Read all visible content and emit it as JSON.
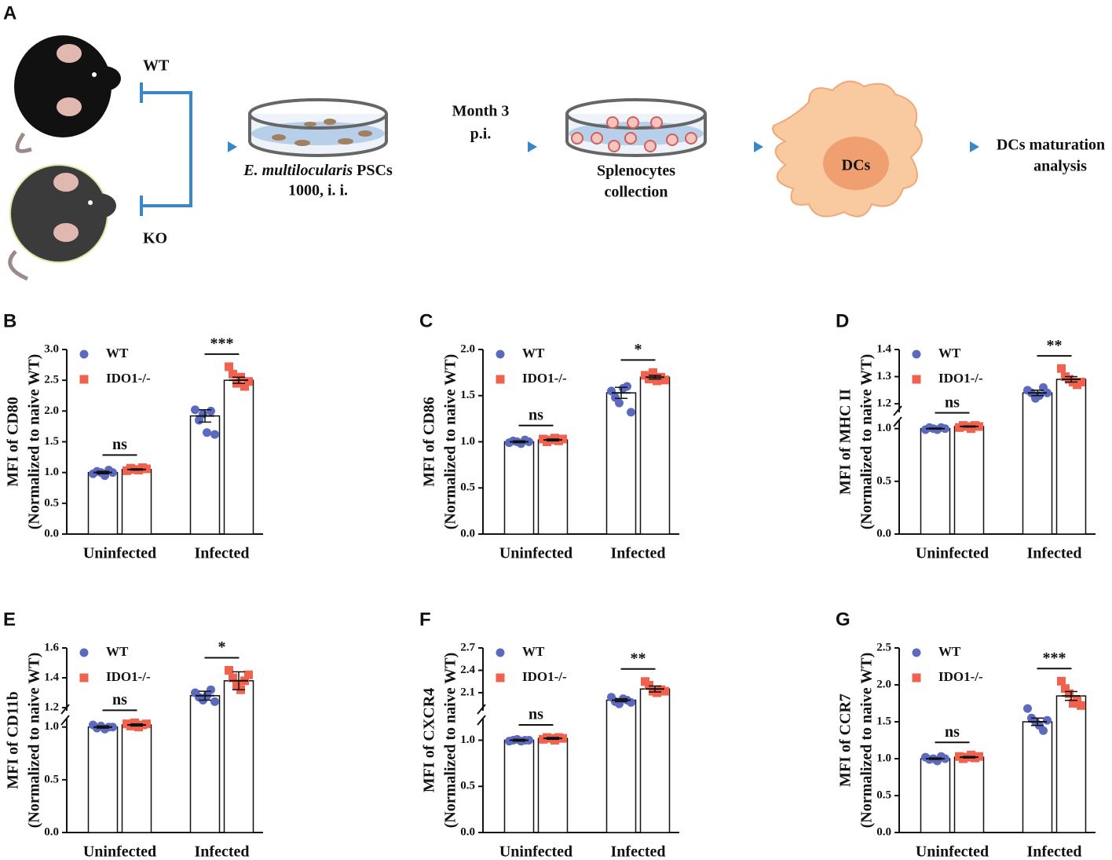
{
  "schematic": {
    "label": "A",
    "wt": "WT",
    "ko": "KO",
    "species": "E. multilocularis",
    "pscs": " PSCs",
    "dose": "1000, i. i.",
    "time": [
      "Month 3",
      "p.i."
    ],
    "collection": [
      "Splenocytes",
      "collection"
    ],
    "cell": "DCs",
    "analysis": [
      "DCs maturation",
      "analysis"
    ]
  },
  "chart_data": [
    {
      "type": "bar",
      "label": "B",
      "ylabel": [
        "MFI of CD80",
        "(Normalized to naive WT)"
      ],
      "categories": [
        "Uninfected",
        "Infected"
      ],
      "significance": [
        "ns",
        "***"
      ],
      "ylim": [
        0,
        3
      ],
      "yticks": [
        {
          "value": 0,
          "label": "0.0"
        },
        0.5,
        {
          "value": 1,
          "label": "1.0"
        },
        1.5,
        {
          "value": 2,
          "label": "2.0"
        },
        2.5,
        {
          "value": 3,
          "label": "3.0"
        }
      ],
      "series": [
        {
          "name": "WT",
          "color": "#5b6abf",
          "marker": "circle",
          "values": [
            1.0,
            1.92
          ],
          "errors": [
            0.02,
            0.1
          ],
          "points": [
            [
              0.98,
              1.02,
              1.0,
              0.95,
              1.04,
              1.0
            ],
            [
              2.02,
              1.85,
              1.95,
              1.65,
              2.0,
              1.62
            ]
          ]
        },
        {
          "name": "IDO1-/-",
          "color": "#f0624d",
          "marker": "square",
          "values": [
            1.05,
            2.5
          ],
          "errors": [
            0.01,
            0.05
          ],
          "points": [
            [
              1.03,
              1.07,
              1.05,
              1.04,
              1.08,
              1.06
            ],
            [
              2.72,
              2.6,
              2.45,
              2.55,
              2.4,
              2.48
            ]
          ]
        }
      ]
    },
    {
      "type": "bar",
      "label": "C",
      "ylabel": [
        "MFI of CD86",
        "(Normalized to naive WT)"
      ],
      "categories": [
        "Uninfected",
        "Infected"
      ],
      "significance": [
        "ns",
        "*"
      ],
      "ylim": [
        0,
        2
      ],
      "yticks": [
        {
          "value": 0,
          "label": "0.0"
        },
        0.5,
        {
          "value": 1,
          "label": "1.0"
        },
        1.5,
        {
          "value": 2,
          "label": "2.0"
        }
      ],
      "series": [
        {
          "name": "WT",
          "color": "#5b6abf",
          "marker": "circle",
          "values": [
            1.0,
            1.53
          ],
          "errors": [
            0.01,
            0.06
          ],
          "points": [
            [
              0.99,
              1.01,
              1.0,
              0.98,
              1.02,
              1.0
            ],
            [
              1.55,
              1.48,
              1.42,
              1.58,
              1.6,
              1.32
            ]
          ]
        },
        {
          "name": "IDO1-/-",
          "color": "#f0624d",
          "marker": "square",
          "values": [
            1.02,
            1.7
          ],
          "errors": [
            0.01,
            0.02
          ],
          "points": [
            [
              1.03,
              1.0,
              1.02,
              1.04,
              1.01,
              1.03
            ],
            [
              1.72,
              1.68,
              1.75,
              1.66,
              1.7,
              1.67
            ]
          ]
        }
      ]
    },
    {
      "type": "bar",
      "label": "D",
      "ylabel": [
        "MFI of MHC II",
        "(Normalized to naive WT)"
      ],
      "categories": [
        "Uninfected",
        "Infected"
      ],
      "significance": [
        "ns",
        "**"
      ],
      "ylim": [
        0,
        1.4
      ],
      "axis_break": [
        1.05,
        1.18
      ],
      "yticks": [
        {
          "value": 0,
          "label": "0.0"
        },
        0.5,
        {
          "value": 1,
          "label": "1.0"
        },
        1.2,
        1.3,
        1.4
      ],
      "series": [
        {
          "name": "WT",
          "color": "#5b6abf",
          "marker": "circle",
          "values": [
            1.0,
            1.24
          ],
          "errors": [
            0.005,
            0.01
          ],
          "points": [
            [
              0.99,
              1.01,
              1.0,
              0.99,
              1.01,
              1.0
            ],
            [
              1.25,
              1.24,
              1.22,
              1.23,
              1.26,
              1.24
            ]
          ]
        },
        {
          "name": "IDO1-/-",
          "color": "#f0624d",
          "marker": "square",
          "values": [
            1.02,
            1.29
          ],
          "errors": [
            0.005,
            0.01
          ],
          "points": [
            [
              1.01,
              1.03,
              1.02,
              1.0,
              1.03,
              1.02
            ],
            [
              1.33,
              1.3,
              1.29,
              1.28,
              1.27,
              1.28
            ]
          ]
        }
      ]
    },
    {
      "type": "bar",
      "label": "E",
      "ylabel": [
        "MFI of CD11b",
        "(Normalized to naive WT)"
      ],
      "categories": [
        "Uninfected",
        "Infected"
      ],
      "significance": [
        "ns",
        "*"
      ],
      "ylim": [
        0,
        1.6
      ],
      "axis_break": [
        1.05,
        1.2
      ],
      "yticks": [
        {
          "value": 0,
          "label": "0.0"
        },
        0.5,
        {
          "value": 1,
          "label": "1.0"
        },
        1.2,
        1.4,
        1.6
      ],
      "series": [
        {
          "name": "WT",
          "color": "#5b6abf",
          "marker": "circle",
          "values": [
            1.0,
            1.28
          ],
          "errors": [
            0.01,
            0.03
          ],
          "points": [
            [
              1.02,
              0.99,
              1.01,
              0.98,
              1.0,
              1.0
            ],
            [
              1.3,
              1.27,
              1.25,
              1.28,
              1.32,
              1.24
            ]
          ]
        },
        {
          "name": "IDO1-/-",
          "color": "#f0624d",
          "marker": "square",
          "values": [
            1.02,
            1.38
          ],
          "errors": [
            0.01,
            0.06
          ],
          "points": [
            [
              1.03,
              1.01,
              1.04,
              1.0,
              1.02,
              1.03
            ],
            [
              1.45,
              1.4,
              1.35,
              1.32,
              1.38,
              1.42
            ]
          ]
        }
      ]
    },
    {
      "type": "bar",
      "label": "F",
      "ylabel": [
        "MFI of CXCR4",
        "(Normalized to naive WT)"
      ],
      "categories": [
        "Uninfected",
        "Infected"
      ],
      "significance": [
        "ns",
        "**"
      ],
      "ylim": [
        0,
        2.7
      ],
      "axis_break": [
        1.2,
        1.9
      ],
      "yticks": [
        {
          "value": 0,
          "label": "0.0"
        },
        0.5,
        {
          "value": 1,
          "label": "1.0"
        },
        2.1,
        2.4,
        2.7
      ],
      "series": [
        {
          "name": "WT",
          "color": "#5b6abf",
          "marker": "circle",
          "values": [
            1.0,
            2.0
          ],
          "errors": [
            0.01,
            0.02
          ],
          "points": [
            [
              0.99,
              1.0,
              1.01,
              0.99,
              1.0,
              1.0
            ],
            [
              2.04,
              1.98,
              1.95,
              2.02,
              2.0,
              1.97
            ]
          ]
        },
        {
          "name": "IDO1-/-",
          "color": "#f0624d",
          "marker": "square",
          "values": [
            1.02,
            2.15
          ],
          "errors": [
            0.01,
            0.04
          ],
          "points": [
            [
              1.01,
              1.03,
              1.02,
              1.0,
              1.03,
              1.02
            ],
            [
              2.25,
              2.2,
              2.12,
              2.1,
              2.14,
              2.12
            ]
          ]
        }
      ]
    },
    {
      "type": "bar",
      "label": "G",
      "ylabel": [
        "MFI of CCR7",
        "(Normalized to naive WT)"
      ],
      "categories": [
        "Uninfected",
        "Infected"
      ],
      "significance": [
        "ns",
        "***"
      ],
      "ylim": [
        0,
        2.5
      ],
      "yticks": [
        {
          "value": 0,
          "label": "0.0"
        },
        0.5,
        {
          "value": 1,
          "label": "1.0"
        },
        1.5,
        {
          "value": 2,
          "label": "2.0"
        },
        2.5
      ],
      "series": [
        {
          "name": "WT",
          "color": "#5b6abf",
          "marker": "circle",
          "values": [
            1.0,
            1.5
          ],
          "errors": [
            0.01,
            0.05
          ],
          "points": [
            [
              1.02,
              0.99,
              1.0,
              0.97,
              1.03,
              1.0
            ],
            [
              1.68,
              1.55,
              1.5,
              1.45,
              1.38,
              1.52
            ]
          ]
        },
        {
          "name": "IDO1-/-",
          "color": "#f0624d",
          "marker": "square",
          "values": [
            1.02,
            1.85
          ],
          "errors": [
            0.01,
            0.06
          ],
          "points": [
            [
              1.03,
              1.0,
              1.02,
              1.05,
              1.01,
              1.03
            ],
            [
              2.05,
              1.95,
              1.88,
              1.75,
              1.8,
              1.72
            ]
          ]
        }
      ]
    }
  ]
}
